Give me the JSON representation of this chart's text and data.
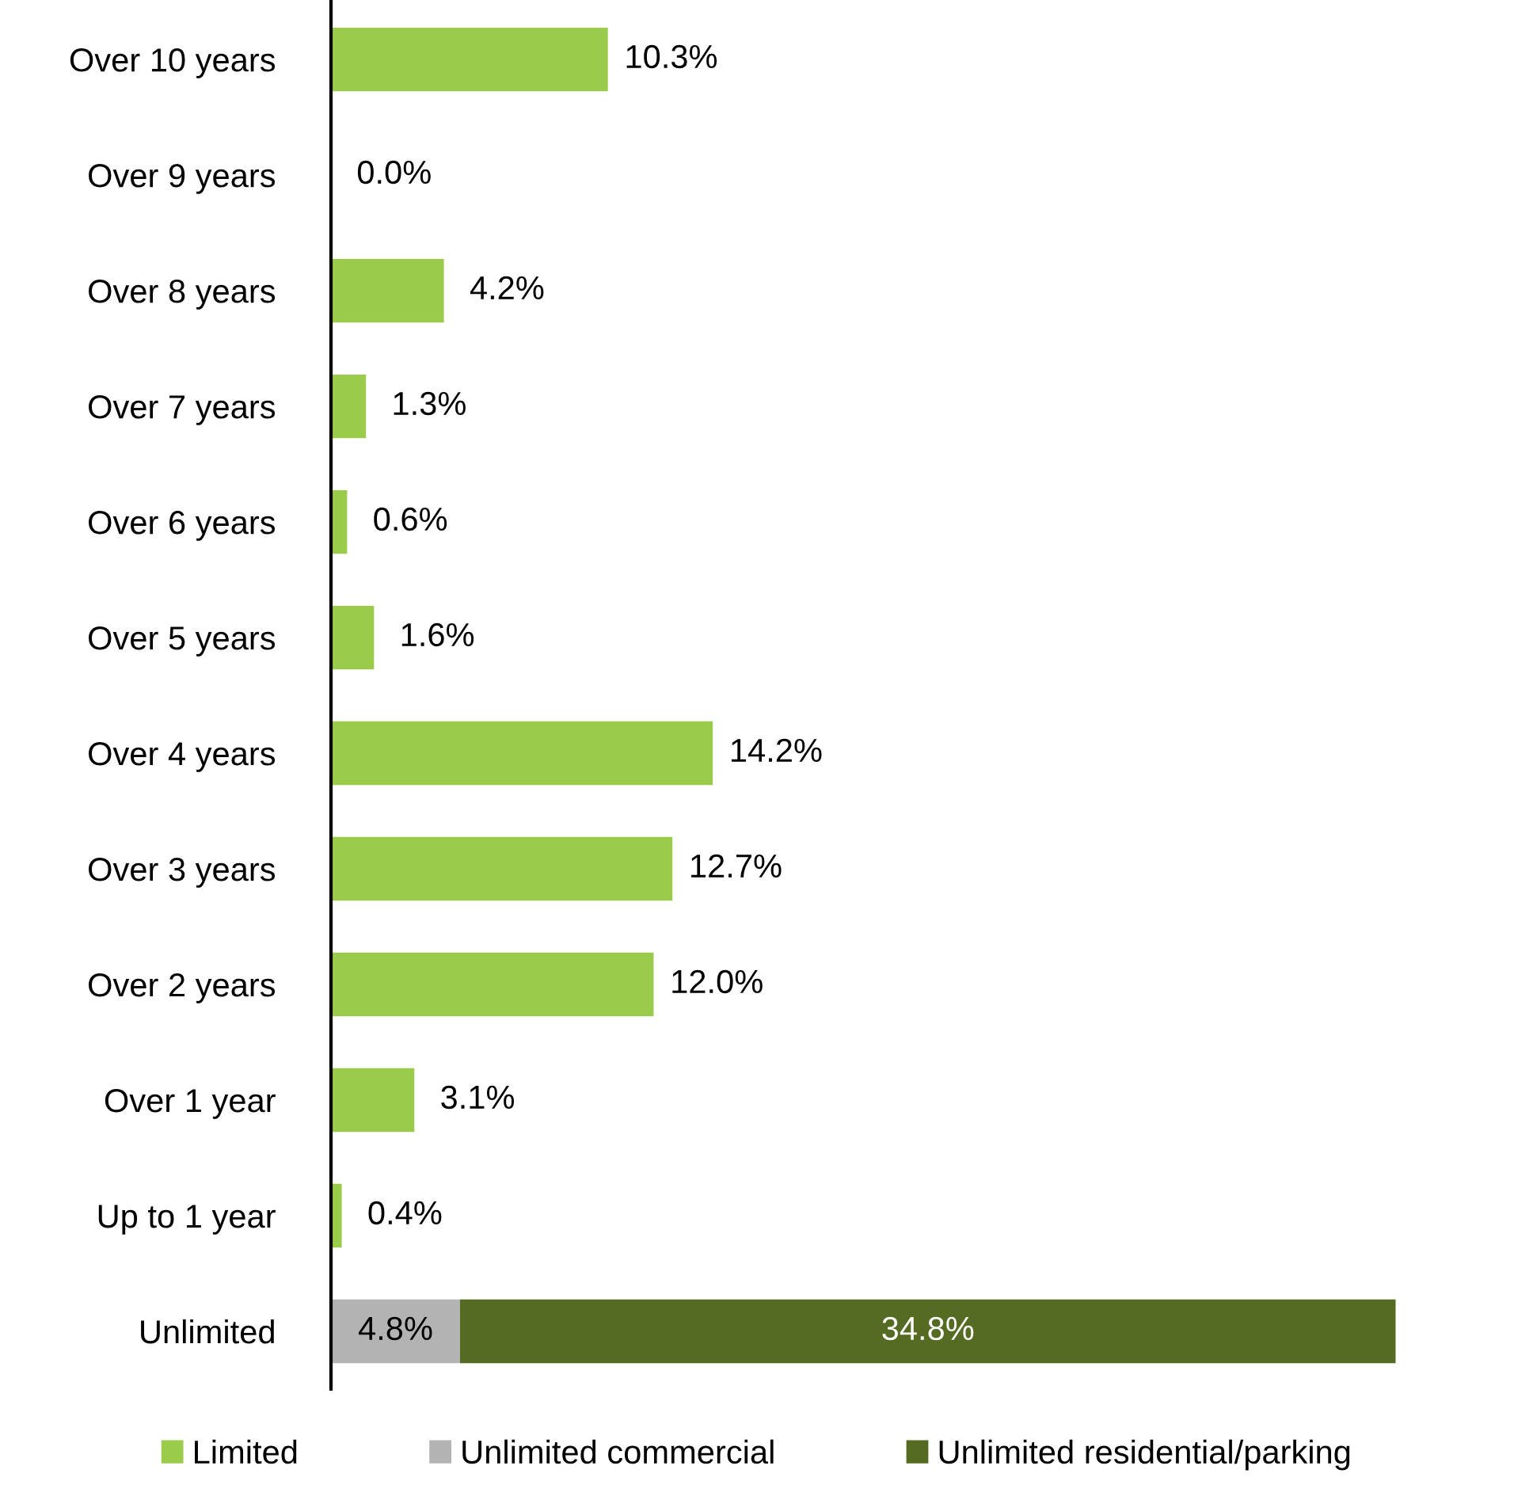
{
  "chart_data": {
    "type": "bar",
    "orientation": "horizontal",
    "stacked": true,
    "legend": "bottom",
    "categories": [
      "Over 10 years",
      "Over 9 years",
      "Over 8 years",
      "Over 7 years",
      "Over 6 years",
      "Over 5 years",
      "Over 4 years",
      "Over 3 years",
      "Over 2 years",
      "Over 1 year",
      "Up to 1 year",
      "Unlimited"
    ],
    "series": [
      {
        "name": "Limited",
        "color": "#9bcb4a",
        "values": [
          10.3,
          0.0,
          4.2,
          1.3,
          0.6,
          1.6,
          14.2,
          12.7,
          12.0,
          3.1,
          0.4,
          null
        ],
        "value_labels": [
          "10.3%",
          "0.0%",
          "4.2%",
          "1.3%",
          "0.6%",
          "1.6%",
          "14.2%",
          "12.7%",
          "12.0%",
          "3.1%",
          "0.4%",
          null
        ]
      },
      {
        "name": "Unlimited commercial",
        "color": "#b3b3b3",
        "values": [
          null,
          null,
          null,
          null,
          null,
          null,
          null,
          null,
          null,
          null,
          null,
          4.8
        ],
        "value_labels": [
          null,
          null,
          null,
          null,
          null,
          null,
          null,
          null,
          null,
          null,
          null,
          "4.8%"
        ]
      },
      {
        "name": "Unlimited residential/parking",
        "color": "#556b21",
        "values": [
          null,
          null,
          null,
          null,
          null,
          null,
          null,
          null,
          null,
          null,
          null,
          34.8
        ],
        "value_labels": [
          null,
          null,
          null,
          null,
          null,
          null,
          null,
          null,
          null,
          null,
          null,
          "34.8%"
        ]
      }
    ]
  }
}
